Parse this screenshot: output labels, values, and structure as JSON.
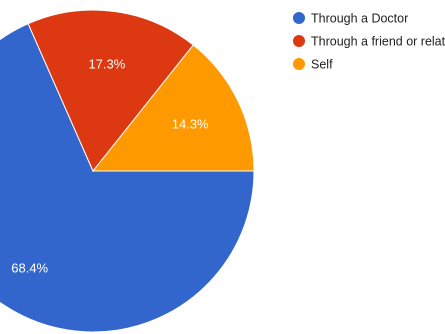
{
  "chart_data": {
    "type": "pie",
    "title": "",
    "legend_position": "top-right",
    "slices": [
      {
        "name": "Through a Doctor",
        "value": 68.4,
        "label": "68.4%",
        "color": "#3366cc"
      },
      {
        "name": "Through a friend or relative",
        "value": 17.3,
        "label": "17.3%",
        "color": "#dc3912"
      },
      {
        "name": "Self",
        "value": 14.3,
        "label": "14.3%",
        "color": "#ff9900"
      }
    ]
  }
}
